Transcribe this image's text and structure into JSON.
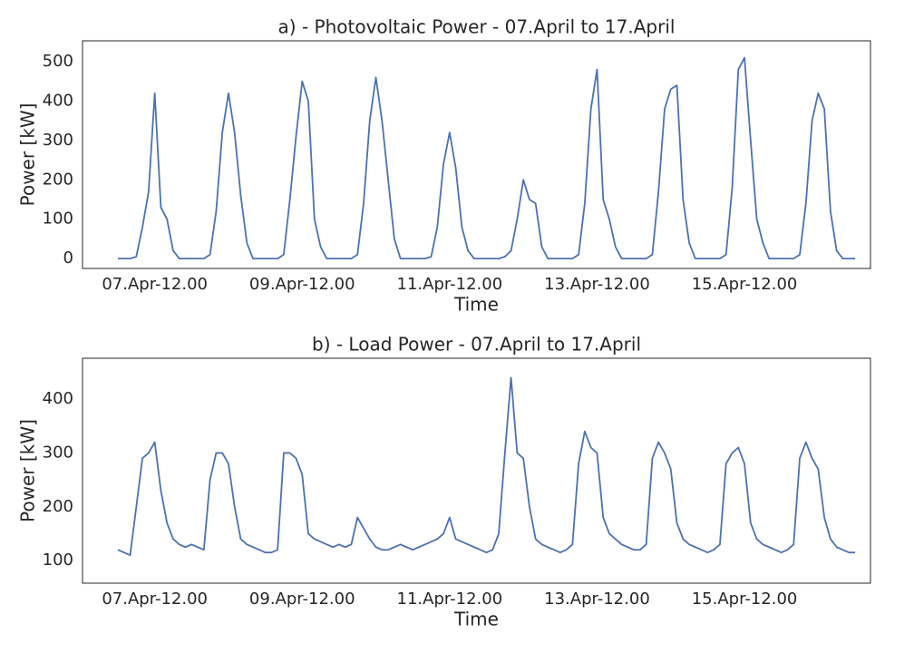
{
  "chart_data": [
    {
      "type": "line",
      "title": "a) - Photovoltaic Power - 07.April to 17.April",
      "x_label": "Time",
      "y_label": "Power [kW]",
      "grid": false,
      "x": [
        "07.Apr-00.00",
        "07.Apr-02.00",
        "07.Apr-04.00",
        "07.Apr-06.00",
        "07.Apr-08.00",
        "07.Apr-10.00",
        "07.Apr-12.00",
        "07.Apr-14.00",
        "07.Apr-16.00",
        "07.Apr-18.00",
        "07.Apr-20.00",
        "07.Apr-22.00",
        "08.Apr-00.00",
        "08.Apr-02.00",
        "08.Apr-04.00",
        "08.Apr-06.00",
        "08.Apr-08.00",
        "08.Apr-10.00",
        "08.Apr-12.00",
        "08.Apr-14.00",
        "08.Apr-16.00",
        "08.Apr-18.00",
        "08.Apr-20.00",
        "08.Apr-22.00",
        "09.Apr-00.00",
        "09.Apr-02.00",
        "09.Apr-04.00",
        "09.Apr-06.00",
        "09.Apr-08.00",
        "09.Apr-10.00",
        "09.Apr-12.00",
        "09.Apr-14.00",
        "09.Apr-16.00",
        "09.Apr-18.00",
        "09.Apr-20.00",
        "09.Apr-22.00",
        "10.Apr-00.00",
        "10.Apr-02.00",
        "10.Apr-04.00",
        "10.Apr-06.00",
        "10.Apr-08.00",
        "10.Apr-10.00",
        "10.Apr-12.00",
        "10.Apr-14.00",
        "10.Apr-16.00",
        "10.Apr-18.00",
        "10.Apr-20.00",
        "10.Apr-22.00",
        "11.Apr-00.00",
        "11.Apr-02.00",
        "11.Apr-04.00",
        "11.Apr-06.00",
        "11.Apr-08.00",
        "11.Apr-10.00",
        "11.Apr-12.00",
        "11.Apr-14.00",
        "11.Apr-16.00",
        "11.Apr-18.00",
        "11.Apr-20.00",
        "11.Apr-22.00",
        "12.Apr-00.00",
        "12.Apr-02.00",
        "12.Apr-04.00",
        "12.Apr-06.00",
        "12.Apr-08.00",
        "12.Apr-10.00",
        "12.Apr-12.00",
        "12.Apr-14.00",
        "12.Apr-16.00",
        "12.Apr-18.00",
        "12.Apr-20.00",
        "12.Apr-22.00",
        "13.Apr-00.00",
        "13.Apr-02.00",
        "13.Apr-04.00",
        "13.Apr-06.00",
        "13.Apr-08.00",
        "13.Apr-10.00",
        "13.Apr-12.00",
        "13.Apr-14.00",
        "13.Apr-16.00",
        "13.Apr-18.00",
        "13.Apr-20.00",
        "13.Apr-22.00",
        "14.Apr-00.00",
        "14.Apr-02.00",
        "14.Apr-04.00",
        "14.Apr-06.00",
        "14.Apr-08.00",
        "14.Apr-10.00",
        "14.Apr-12.00",
        "14.Apr-14.00",
        "14.Apr-16.00",
        "14.Apr-18.00",
        "14.Apr-20.00",
        "14.Apr-22.00",
        "15.Apr-00.00",
        "15.Apr-02.00",
        "15.Apr-04.00",
        "15.Apr-06.00",
        "15.Apr-08.00",
        "15.Apr-10.00",
        "15.Apr-12.00",
        "15.Apr-14.00",
        "15.Apr-16.00",
        "15.Apr-18.00",
        "15.Apr-20.00",
        "15.Apr-22.00",
        "16.Apr-00.00",
        "16.Apr-02.00",
        "16.Apr-04.00",
        "16.Apr-06.00",
        "16.Apr-08.00",
        "16.Apr-10.00",
        "16.Apr-12.00",
        "16.Apr-14.00",
        "16.Apr-16.00",
        "16.Apr-18.00",
        "16.Apr-20.00",
        "16.Apr-22.00",
        "17.Apr-00.00"
      ],
      "xticks": [
        "07.Apr-12.00",
        "09.Apr-12.00",
        "11.Apr-12.00",
        "13.Apr-12.00",
        "15.Apr-12.00"
      ],
      "ylim": [
        -25,
        553
      ],
      "yticks": [
        0,
        100,
        200,
        300,
        400,
        500
      ],
      "series": [
        {
          "color": "#4c72b0",
          "values": [
            0,
            0,
            0,
            5,
            80,
            170,
            420,
            130,
            100,
            20,
            0,
            0,
            0,
            0,
            0,
            10,
            120,
            320,
            420,
            320,
            160,
            40,
            0,
            0,
            0,
            0,
            0,
            10,
            150,
            310,
            450,
            400,
            100,
            30,
            0,
            0,
            0,
            0,
            0,
            10,
            140,
            350,
            460,
            350,
            200,
            50,
            0,
            0,
            0,
            0,
            0,
            5,
            80,
            240,
            320,
            230,
            80,
            20,
            0,
            0,
            0,
            0,
            0,
            5,
            20,
            100,
            200,
            150,
            140,
            30,
            0,
            0,
            0,
            0,
            0,
            10,
            140,
            380,
            480,
            150,
            100,
            30,
            0,
            0,
            0,
            0,
            0,
            10,
            170,
            380,
            430,
            440,
            150,
            40,
            0,
            0,
            0,
            0,
            0,
            10,
            180,
            480,
            510,
            300,
            100,
            40,
            0,
            0,
            0,
            0,
            0,
            10,
            140,
            350,
            420,
            380,
            120,
            20,
            0,
            0,
            0
          ]
        }
      ]
    },
    {
      "type": "line",
      "title": "b) - Load Power - 07.April to 17.April",
      "x_label": "Time",
      "y_label": "Power [kW]",
      "grid": false,
      "x": [
        "07.Apr-00.00",
        "07.Apr-02.00",
        "07.Apr-04.00",
        "07.Apr-06.00",
        "07.Apr-08.00",
        "07.Apr-10.00",
        "07.Apr-12.00",
        "07.Apr-14.00",
        "07.Apr-16.00",
        "07.Apr-18.00",
        "07.Apr-20.00",
        "07.Apr-22.00",
        "08.Apr-00.00",
        "08.Apr-02.00",
        "08.Apr-04.00",
        "08.Apr-06.00",
        "08.Apr-08.00",
        "08.Apr-10.00",
        "08.Apr-12.00",
        "08.Apr-14.00",
        "08.Apr-16.00",
        "08.Apr-18.00",
        "08.Apr-20.00",
        "08.Apr-22.00",
        "09.Apr-00.00",
        "09.Apr-02.00",
        "09.Apr-04.00",
        "09.Apr-06.00",
        "09.Apr-08.00",
        "09.Apr-10.00",
        "09.Apr-12.00",
        "09.Apr-14.00",
        "09.Apr-16.00",
        "09.Apr-18.00",
        "09.Apr-20.00",
        "09.Apr-22.00",
        "10.Apr-00.00",
        "10.Apr-02.00",
        "10.Apr-04.00",
        "10.Apr-06.00",
        "10.Apr-08.00",
        "10.Apr-10.00",
        "10.Apr-12.00",
        "10.Apr-14.00",
        "10.Apr-16.00",
        "10.Apr-18.00",
        "10.Apr-20.00",
        "10.Apr-22.00",
        "11.Apr-00.00",
        "11.Apr-02.00",
        "11.Apr-04.00",
        "11.Apr-06.00",
        "11.Apr-08.00",
        "11.Apr-10.00",
        "11.Apr-12.00",
        "11.Apr-14.00",
        "11.Apr-16.00",
        "11.Apr-18.00",
        "11.Apr-20.00",
        "11.Apr-22.00",
        "12.Apr-00.00",
        "12.Apr-02.00",
        "12.Apr-04.00",
        "12.Apr-06.00",
        "12.Apr-08.00",
        "12.Apr-10.00",
        "12.Apr-12.00",
        "12.Apr-14.00",
        "12.Apr-16.00",
        "12.Apr-18.00",
        "12.Apr-20.00",
        "12.Apr-22.00",
        "13.Apr-00.00",
        "13.Apr-02.00",
        "13.Apr-04.00",
        "13.Apr-06.00",
        "13.Apr-08.00",
        "13.Apr-10.00",
        "13.Apr-12.00",
        "13.Apr-14.00",
        "13.Apr-16.00",
        "13.Apr-18.00",
        "13.Apr-20.00",
        "13.Apr-22.00",
        "14.Apr-00.00",
        "14.Apr-02.00",
        "14.Apr-04.00",
        "14.Apr-06.00",
        "14.Apr-08.00",
        "14.Apr-10.00",
        "14.Apr-12.00",
        "14.Apr-14.00",
        "14.Apr-16.00",
        "14.Apr-18.00",
        "14.Apr-20.00",
        "14.Apr-22.00",
        "15.Apr-00.00",
        "15.Apr-02.00",
        "15.Apr-04.00",
        "15.Apr-06.00",
        "15.Apr-08.00",
        "15.Apr-10.00",
        "15.Apr-12.00",
        "15.Apr-14.00",
        "15.Apr-16.00",
        "15.Apr-18.00",
        "15.Apr-20.00",
        "15.Apr-22.00",
        "16.Apr-00.00",
        "16.Apr-02.00",
        "16.Apr-04.00",
        "16.Apr-06.00",
        "16.Apr-08.00",
        "16.Apr-10.00",
        "16.Apr-12.00",
        "16.Apr-14.00",
        "16.Apr-16.00",
        "16.Apr-18.00",
        "16.Apr-20.00",
        "16.Apr-22.00",
        "17.Apr-00.00"
      ],
      "xticks": [
        "07.Apr-12.00",
        "09.Apr-12.00",
        "11.Apr-12.00",
        "13.Apr-12.00",
        "15.Apr-12.00"
      ],
      "ylim": [
        58,
        476
      ],
      "yticks": [
        100,
        200,
        300,
        400
      ],
      "series": [
        {
          "color": "#4c72b0",
          "values": [
            120,
            115,
            110,
            200,
            290,
            300,
            320,
            230,
            170,
            140,
            130,
            125,
            130,
            125,
            120,
            250,
            300,
            300,
            280,
            200,
            140,
            130,
            125,
            120,
            115,
            115,
            120,
            300,
            300,
            290,
            260,
            150,
            140,
            135,
            130,
            125,
            130,
            125,
            130,
            180,
            160,
            140,
            125,
            120,
            120,
            125,
            130,
            125,
            120,
            125,
            130,
            135,
            140,
            150,
            180,
            140,
            135,
            130,
            125,
            120,
            115,
            120,
            150,
            300,
            440,
            300,
            290,
            200,
            140,
            130,
            125,
            120,
            115,
            120,
            130,
            280,
            340,
            310,
            300,
            180,
            150,
            140,
            130,
            125,
            120,
            120,
            130,
            290,
            320,
            300,
            270,
            170,
            140,
            130,
            125,
            120,
            115,
            120,
            130,
            280,
            300,
            310,
            280,
            170,
            140,
            130,
            125,
            120,
            115,
            120,
            130,
            290,
            320,
            290,
            270,
            180,
            140,
            125,
            120,
            115,
            115
          ]
        }
      ]
    }
  ]
}
